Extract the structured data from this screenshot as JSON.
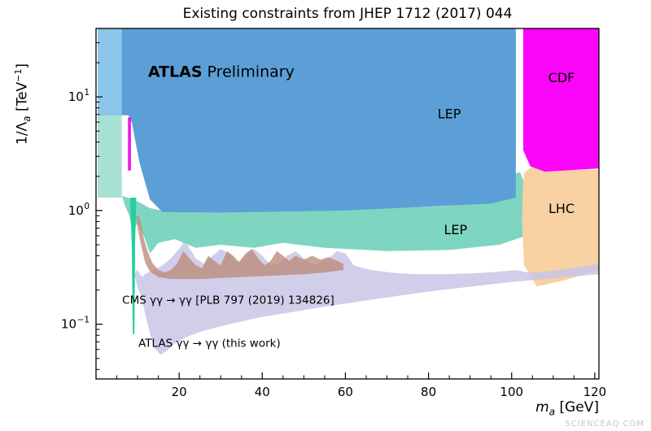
{
  "page": {
    "watermark": "SCIENCEAQ.COM"
  },
  "chart_data": {
    "type": "area",
    "title": "Existing constraints from JHEP 1712 (2017) 044",
    "xlabel": {
      "text": "m",
      "sub": "a",
      "unit": "  [GeV]"
    },
    "ylabel": {
      "pre": "1/Λ",
      "sub": "a",
      "mid": "  [TeV",
      "sup": "−1",
      "post": "]"
    },
    "xlim": [
      0,
      121
    ],
    "ylim": [
      0.033,
      40
    ],
    "xscale": "linear",
    "yscale": "log",
    "grid": false,
    "legend": "none",
    "x_ticks": [
      20,
      40,
      60,
      80,
      100,
      120
    ],
    "x_minor_from": 5,
    "x_minor_step": 5,
    "y_ticks": [
      {
        "value": 0.1,
        "base": "10",
        "exp": "−1"
      },
      {
        "value": 1,
        "base": "10",
        "exp": "0"
      },
      {
        "value": 10,
        "base": "10",
        "exp": "1"
      }
    ],
    "regions": [
      {
        "name": "lep-teal-left-column",
        "label": "LEP",
        "color": "#a9e2d4",
        "opacity": 1,
        "points": [
          [
            0.4,
            6.9
          ],
          [
            6.2,
            6.9
          ],
          [
            6.2,
            1.3
          ],
          [
            0.4,
            1.3
          ]
        ]
      },
      {
        "name": "lep-teal-band",
        "label": "LEP",
        "color": "#7ed6c1",
        "opacity": 1,
        "points": [
          [
            6.2,
            1.35
          ],
          [
            7.5,
            1.3
          ],
          [
            9,
            1.25
          ],
          [
            11,
            1.15
          ],
          [
            13,
            1.05
          ],
          [
            16,
            1.0
          ],
          [
            30,
            0.97
          ],
          [
            60,
            1.02
          ],
          [
            85,
            1.1
          ],
          [
            93,
            1.2
          ],
          [
            97,
            1.35
          ],
          [
            99.5,
            2.05
          ],
          [
            102,
            2.18
          ],
          [
            103.5,
            1.6
          ],
          [
            103.5,
            0.6
          ],
          [
            97,
            0.5
          ],
          [
            85,
            0.45
          ],
          [
            70,
            0.44
          ],
          [
            55,
            0.47
          ],
          [
            45,
            0.52
          ],
          [
            38,
            0.47
          ],
          [
            30,
            0.5
          ],
          [
            24,
            0.47
          ],
          [
            19,
            0.56
          ],
          [
            15,
            0.52
          ],
          [
            13,
            0.42
          ],
          [
            11.5,
            0.6
          ],
          [
            10,
            0.78
          ],
          [
            8.8,
            0.65
          ],
          [
            8,
            0.9
          ],
          [
            7,
            1.1
          ]
        ]
      },
      {
        "name": "lhc",
        "label": "LHC",
        "color": "#f8d2a2",
        "opacity": 1,
        "points": [
          [
            103,
            2.15
          ],
          [
            105,
            2.45
          ],
          [
            108,
            2.25
          ],
          [
            121,
            2.3
          ],
          [
            121,
            0.3
          ],
          [
            112,
            0.24
          ],
          [
            106,
            0.215
          ],
          [
            103,
            0.33
          ],
          [
            102.5,
            0.8
          ],
          [
            102.7,
            1.6
          ]
        ]
      },
      {
        "name": "atlas-this-work",
        "label": "ATLAS γγ → γγ (this work)",
        "color": "#c9c6e6",
        "opacity": 0.85,
        "points": [
          [
            9.2,
            0.28
          ],
          [
            10,
            0.21
          ],
          [
            11,
            0.17
          ],
          [
            12,
            0.115
          ],
          [
            13,
            0.082
          ],
          [
            14,
            0.062
          ],
          [
            15.5,
            0.054
          ],
          [
            17,
            0.058
          ],
          [
            19,
            0.068
          ],
          [
            22,
            0.078
          ],
          [
            26,
            0.088
          ],
          [
            30,
            0.096
          ],
          [
            35,
            0.106
          ],
          [
            40,
            0.116
          ],
          [
            46,
            0.126
          ],
          [
            52,
            0.137
          ],
          [
            58,
            0.148
          ],
          [
            64,
            0.16
          ],
          [
            70,
            0.172
          ],
          [
            76,
            0.185
          ],
          [
            82,
            0.198
          ],
          [
            88,
            0.21
          ],
          [
            94,
            0.222
          ],
          [
            100,
            0.235
          ],
          [
            108,
            0.25
          ],
          [
            114,
            0.262
          ],
          [
            121,
            0.275
          ],
          [
            121,
            0.34
          ],
          [
            114,
            0.31
          ],
          [
            108,
            0.29
          ],
          [
            104,
            0.285
          ],
          [
            101,
            0.3
          ],
          [
            96,
            0.288
          ],
          [
            90,
            0.28
          ],
          [
            84,
            0.276
          ],
          [
            78,
            0.275
          ],
          [
            72,
            0.282
          ],
          [
            66,
            0.3
          ],
          [
            62,
            0.33
          ],
          [
            60,
            0.42
          ],
          [
            58,
            0.44
          ],
          [
            56,
            0.38
          ],
          [
            54,
            0.35
          ],
          [
            52,
            0.33
          ],
          [
            50,
            0.38
          ],
          [
            48,
            0.44
          ],
          [
            46,
            0.4
          ],
          [
            44,
            0.34
          ],
          [
            42,
            0.33
          ],
          [
            40,
            0.4
          ],
          [
            38,
            0.46
          ],
          [
            36,
            0.41
          ],
          [
            34,
            0.35
          ],
          [
            32,
            0.42
          ],
          [
            30,
            0.46
          ],
          [
            28,
            0.4
          ],
          [
            26,
            0.34
          ],
          [
            24,
            0.38
          ],
          [
            22,
            0.5
          ],
          [
            21,
            0.52
          ],
          [
            20,
            0.46
          ],
          [
            18,
            0.38
          ],
          [
            16,
            0.33
          ],
          [
            14,
            0.3
          ],
          [
            13,
            0.29
          ],
          [
            12,
            0.28
          ],
          [
            11,
            0.26
          ],
          [
            10,
            0.3
          ]
        ]
      },
      {
        "name": "cms-constraint",
        "label": "CMS γγ → γγ [PLB 797 (2019) 134826]",
        "color": "#bb8d7c",
        "opacity": 0.8,
        "points": [
          [
            9.6,
            0.92
          ],
          [
            10.4,
            0.88
          ],
          [
            11,
            0.72
          ],
          [
            11.6,
            0.55
          ],
          [
            12.4,
            0.44
          ],
          [
            13.5,
            0.35
          ],
          [
            15,
            0.3
          ],
          [
            16.5,
            0.285
          ],
          [
            18,
            0.3
          ],
          [
            19.5,
            0.34
          ],
          [
            21,
            0.44
          ],
          [
            22.5,
            0.38
          ],
          [
            24,
            0.33
          ],
          [
            25.5,
            0.31
          ],
          [
            27,
            0.4
          ],
          [
            28.5,
            0.36
          ],
          [
            30,
            0.33
          ],
          [
            31.5,
            0.44
          ],
          [
            33,
            0.4
          ],
          [
            34.5,
            0.35
          ],
          [
            36,
            0.42
          ],
          [
            37.5,
            0.46
          ],
          [
            39,
            0.38
          ],
          [
            40.5,
            0.33
          ],
          [
            42,
            0.36
          ],
          [
            43.5,
            0.44
          ],
          [
            45,
            0.4
          ],
          [
            46.5,
            0.36
          ],
          [
            48,
            0.4
          ],
          [
            50,
            0.37
          ],
          [
            52,
            0.4
          ],
          [
            54,
            0.37
          ],
          [
            56,
            0.39
          ],
          [
            58,
            0.36
          ],
          [
            59.5,
            0.34
          ],
          [
            59.5,
            0.3
          ],
          [
            55,
            0.285
          ],
          [
            50,
            0.275
          ],
          [
            45,
            0.27
          ],
          [
            40,
            0.265
          ],
          [
            35,
            0.26
          ],
          [
            30,
            0.255
          ],
          [
            26,
            0.25
          ],
          [
            22,
            0.25
          ],
          [
            18,
            0.25
          ],
          [
            15,
            0.26
          ],
          [
            13,
            0.29
          ],
          [
            11.8,
            0.35
          ],
          [
            10.8,
            0.5
          ],
          [
            10,
            0.7
          ]
        ]
      },
      {
        "name": "teal-spike",
        "label": "",
        "color": "#22cfa0",
        "opacity": 1,
        "points": [
          [
            8.2,
            1.3
          ],
          [
            9.7,
            1.3
          ],
          [
            9.4,
            0.5
          ],
          [
            9.25,
            0.082
          ],
          [
            8.85,
            0.082
          ],
          [
            8.6,
            0.5
          ]
        ]
      },
      {
        "name": "lep-main",
        "label": "LEP",
        "color": "#5c9fd6",
        "opacity": 1,
        "points": [
          [
            0.4,
            40
          ],
          [
            101,
            40
          ],
          [
            101,
            1.3
          ],
          [
            95,
            1.15
          ],
          [
            60,
            1.0
          ],
          [
            30,
            0.96
          ],
          [
            16,
            0.97
          ],
          [
            13,
            1.25
          ],
          [
            10.5,
            2.6
          ],
          [
            8.6,
            6.0
          ],
          [
            7.8,
            6.9
          ],
          [
            0.4,
            6.9
          ]
        ]
      },
      {
        "name": "lep-left-strip",
        "label": "LEP",
        "color": "#8cc6ec",
        "opacity": 1,
        "points": [
          [
            0.4,
            40
          ],
          [
            6.2,
            40
          ],
          [
            6.2,
            6.9
          ],
          [
            0.4,
            6.9
          ]
        ]
      },
      {
        "name": "magenta-sliver",
        "label": "",
        "color": "#e816e8",
        "opacity": 1,
        "points": [
          [
            7.7,
            6.6
          ],
          [
            8.4,
            6.6
          ],
          [
            8.4,
            2.25
          ],
          [
            7.7,
            2.25
          ]
        ]
      },
      {
        "name": "cdf",
        "label": "CDF",
        "color": "#fb05fb",
        "opacity": 1,
        "points": [
          [
            102.8,
            40
          ],
          [
            121,
            40
          ],
          [
            121,
            2.35
          ],
          [
            108,
            2.2
          ],
          [
            104.5,
            2.45
          ],
          [
            102.8,
            3.4
          ]
        ]
      }
    ],
    "annotations": [
      {
        "name": "label-atlas-preliminary",
        "x": 12.5,
        "y": 15,
        "size": 19,
        "anchor": "start",
        "parts": [
          {
            "text": "ATLAS",
            "bold": true
          },
          {
            "text": "  Preliminary",
            "bold": false
          }
        ]
      },
      {
        "name": "label-lep-top",
        "x": 85,
        "y": 6.5,
        "size": 16,
        "anchor": "middle",
        "parts": [
          {
            "text": "LEP"
          }
        ]
      },
      {
        "name": "label-lep-bottom",
        "x": 86.5,
        "y": 0.62,
        "size": 16,
        "anchor": "middle",
        "parts": [
          {
            "text": "LEP"
          }
        ]
      },
      {
        "name": "label-cdf",
        "x": 112,
        "y": 13.5,
        "size": 16,
        "anchor": "middle",
        "parts": [
          {
            "text": "CDF"
          }
        ]
      },
      {
        "name": "label-lhc",
        "x": 112,
        "y": 0.95,
        "size": 16,
        "anchor": "middle",
        "parts": [
          {
            "text": "LHC"
          }
        ]
      },
      {
        "name": "label-cms-constraint",
        "x": 6.3,
        "y": 0.152,
        "size": 13.5,
        "anchor": "start",
        "parts": [
          {
            "text": "CMS γγ → γγ [PLB 797 (2019) 134826]"
          }
        ]
      },
      {
        "name": "label-atlas-constraint",
        "x": 10.2,
        "y": 0.063,
        "size": 13.5,
        "anchor": "start",
        "parts": [
          {
            "text": "ATLAS γγ → γγ (this work)"
          }
        ]
      }
    ]
  }
}
